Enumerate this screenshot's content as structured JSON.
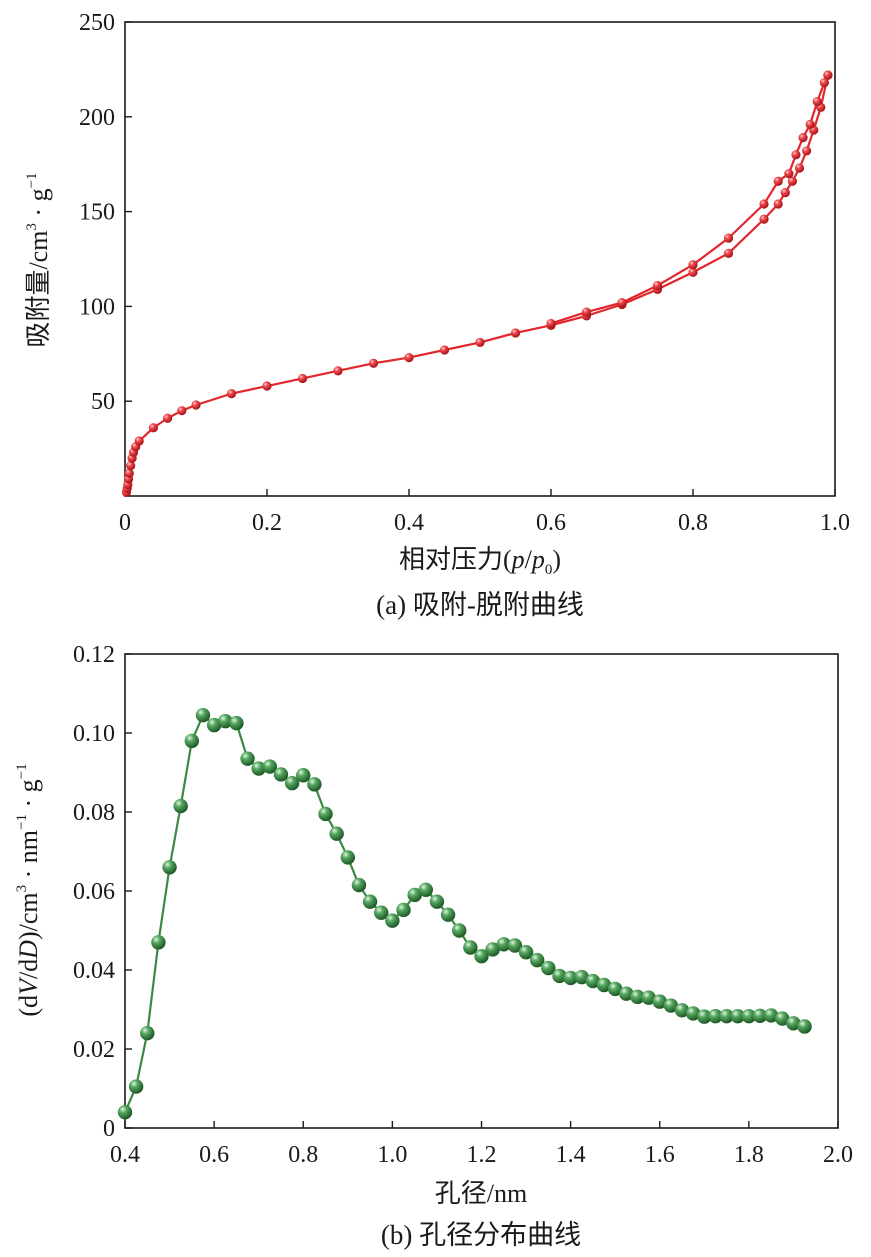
{
  "chart_data": [
    {
      "type": "line",
      "panel": "a",
      "caption": "(a) 吸附-脱附曲线",
      "xlabel": {
        "prefix": "相对压力(",
        "p": "p",
        "slash": "/",
        "p0": "p",
        "sub0": "0",
        "suffix": ")"
      },
      "ylabel": {
        "main": "吸附量/cm",
        "sup3": "3",
        "dot": " · g",
        "supm1": "−1"
      },
      "xlim": [
        0,
        1.0
      ],
      "ylim": [
        0,
        250
      ],
      "xticks": [
        0,
        0.2,
        0.4,
        0.6,
        0.8,
        1.0
      ],
      "xtick_labels": [
        "0",
        "0.2",
        "0.4",
        "0.6",
        "0.8",
        "1.0"
      ],
      "yticks": [
        50,
        100,
        150,
        200,
        250
      ],
      "ytick_labels": [
        "50",
        "100",
        "150",
        "200",
        "250"
      ],
      "color": "#e3262c",
      "series": [
        {
          "name": "adsorption",
          "x": [
            0.002,
            0.003,
            0.004,
            0.005,
            0.006,
            0.008,
            0.01,
            0.012,
            0.015,
            0.02,
            0.04,
            0.06,
            0.08,
            0.1,
            0.15,
            0.2,
            0.25,
            0.3,
            0.35,
            0.4,
            0.45,
            0.5,
            0.55,
            0.6,
            0.65,
            0.7,
            0.75,
            0.8,
            0.85,
            0.9,
            0.92,
            0.93,
            0.94,
            0.95,
            0.96,
            0.97,
            0.98,
            0.99
          ],
          "y": [
            2,
            4,
            6,
            9,
            12,
            16,
            20,
            23,
            26,
            29,
            36,
            41,
            45,
            48,
            54,
            58,
            62,
            66,
            70,
            73,
            77,
            81,
            86,
            90,
            95,
            101,
            109,
            118,
            128,
            146,
            154,
            160,
            166,
            173,
            182,
            193,
            205,
            222
          ]
        },
        {
          "name": "desorption",
          "x": [
            0.99,
            0.985,
            0.975,
            0.965,
            0.955,
            0.945,
            0.935,
            0.92,
            0.9,
            0.85,
            0.8,
            0.75,
            0.7,
            0.65,
            0.6
          ],
          "y": [
            222,
            218,
            208,
            196,
            189,
            180,
            170,
            166,
            154,
            136,
            122,
            111,
            102,
            97,
            91
          ]
        }
      ]
    },
    {
      "type": "line",
      "panel": "b",
      "caption": "(b) 孔径分布曲线",
      "xlabel": {
        "text": "孔径/nm"
      },
      "ylabel": {
        "open": "(d",
        "V": "V",
        "mid": "/d",
        "D": "D",
        "close": ")/cm",
        "sup3": "3",
        "dot1": " · nm",
        "supm1": "−1",
        "dot2": " · g",
        "supm1b": "−1"
      },
      "xlim": [
        0.4,
        2.0
      ],
      "ylim": [
        0,
        0.12
      ],
      "xticks": [
        0.4,
        0.6,
        0.8,
        1.0,
        1.2,
        1.4,
        1.6,
        1.8,
        2.0
      ],
      "xtick_labels": [
        "0.4",
        "0.6",
        "0.8",
        "1.0",
        "1.2",
        "1.4",
        "1.6",
        "1.8",
        "2.0"
      ],
      "yticks": [
        0,
        0.02,
        0.04,
        0.06,
        0.08,
        0.1,
        0.12
      ],
      "ytick_labels": [
        "0",
        "0.02",
        "0.04",
        "0.06",
        "0.08",
        "0.10",
        "0.12"
      ],
      "color": "#3a8a43",
      "series": [
        {
          "name": "pore size distribution",
          "x": [
            0.4,
            0.425,
            0.45,
            0.475,
            0.5,
            0.525,
            0.55,
            0.575,
            0.6,
            0.625,
            0.65,
            0.675,
            0.7,
            0.725,
            0.75,
            0.775,
            0.8,
            0.825,
            0.85,
            0.875,
            0.9,
            0.925,
            0.95,
            0.975,
            1.0,
            1.025,
            1.05,
            1.075,
            1.1,
            1.125,
            1.15,
            1.175,
            1.2,
            1.225,
            1.25,
            1.275,
            1.3,
            1.325,
            1.35,
            1.375,
            1.4,
            1.425,
            1.45,
            1.475,
            1.5,
            1.525,
            1.55,
            1.575,
            1.6,
            1.625,
            1.65,
            1.675,
            1.7,
            1.725,
            1.75,
            1.775,
            1.8,
            1.825,
            1.85,
            1.875,
            1.9,
            1.925
          ],
          "y": [
            0.004,
            0.0105,
            0.024,
            0.047,
            0.066,
            0.0815,
            0.098,
            0.1045,
            0.102,
            0.103,
            0.1025,
            0.0935,
            0.091,
            0.0915,
            0.0895,
            0.0873,
            0.0893,
            0.087,
            0.0795,
            0.0745,
            0.0685,
            0.0615,
            0.0573,
            0.0545,
            0.0525,
            0.0552,
            0.059,
            0.0603,
            0.0573,
            0.054,
            0.05,
            0.0457,
            0.0435,
            0.0452,
            0.0465,
            0.0462,
            0.0445,
            0.0425,
            0.0405,
            0.0385,
            0.038,
            0.0382,
            0.0372,
            0.0362,
            0.0352,
            0.034,
            0.0332,
            0.033,
            0.032,
            0.031,
            0.0298,
            0.029,
            0.0282,
            0.0283,
            0.0283,
            0.0283,
            0.0283,
            0.0284,
            0.0285,
            0.0277,
            0.0265,
            0.0257
          ]
        }
      ]
    }
  ]
}
